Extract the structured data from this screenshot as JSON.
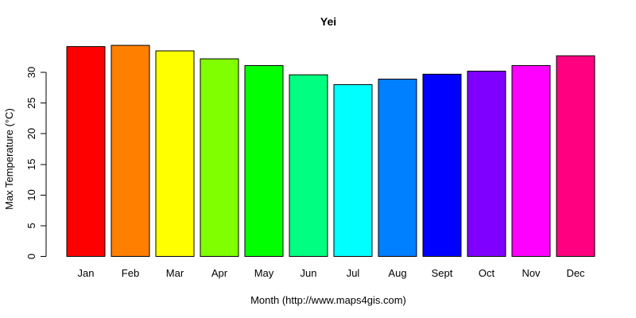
{
  "chart_data": {
    "type": "bar",
    "title": "Yei",
    "xlabel": "Month (http://www.maps4gis.com)",
    "ylabel": "Max Temperature (°C)",
    "categories": [
      "Jan",
      "Feb",
      "Mar",
      "Apr",
      "May",
      "Jun",
      "Jul",
      "Aug",
      "Sept",
      "Oct",
      "Nov",
      "Dec"
    ],
    "values": [
      34.2,
      34.4,
      33.5,
      32.2,
      31.1,
      29.6,
      28.0,
      28.9,
      29.7,
      30.2,
      31.1,
      32.7
    ],
    "bar_colors": [
      "#FF0000",
      "#FF8000",
      "#FFFF00",
      "#80FF00",
      "#00FF00",
      "#00FF80",
      "#00FFFF",
      "#0080FF",
      "#0000FF",
      "#8000FF",
      "#FF00FF",
      "#FF0080"
    ],
    "bar_border_color": "#000000",
    "yticks": [
      0,
      5,
      10,
      15,
      20,
      25,
      30
    ],
    "ylim": [
      0,
      35
    ],
    "grid": false,
    "legend": "none",
    "background": "#FFFFFF",
    "text_color": "#000000",
    "axis_color": "#000000"
  }
}
